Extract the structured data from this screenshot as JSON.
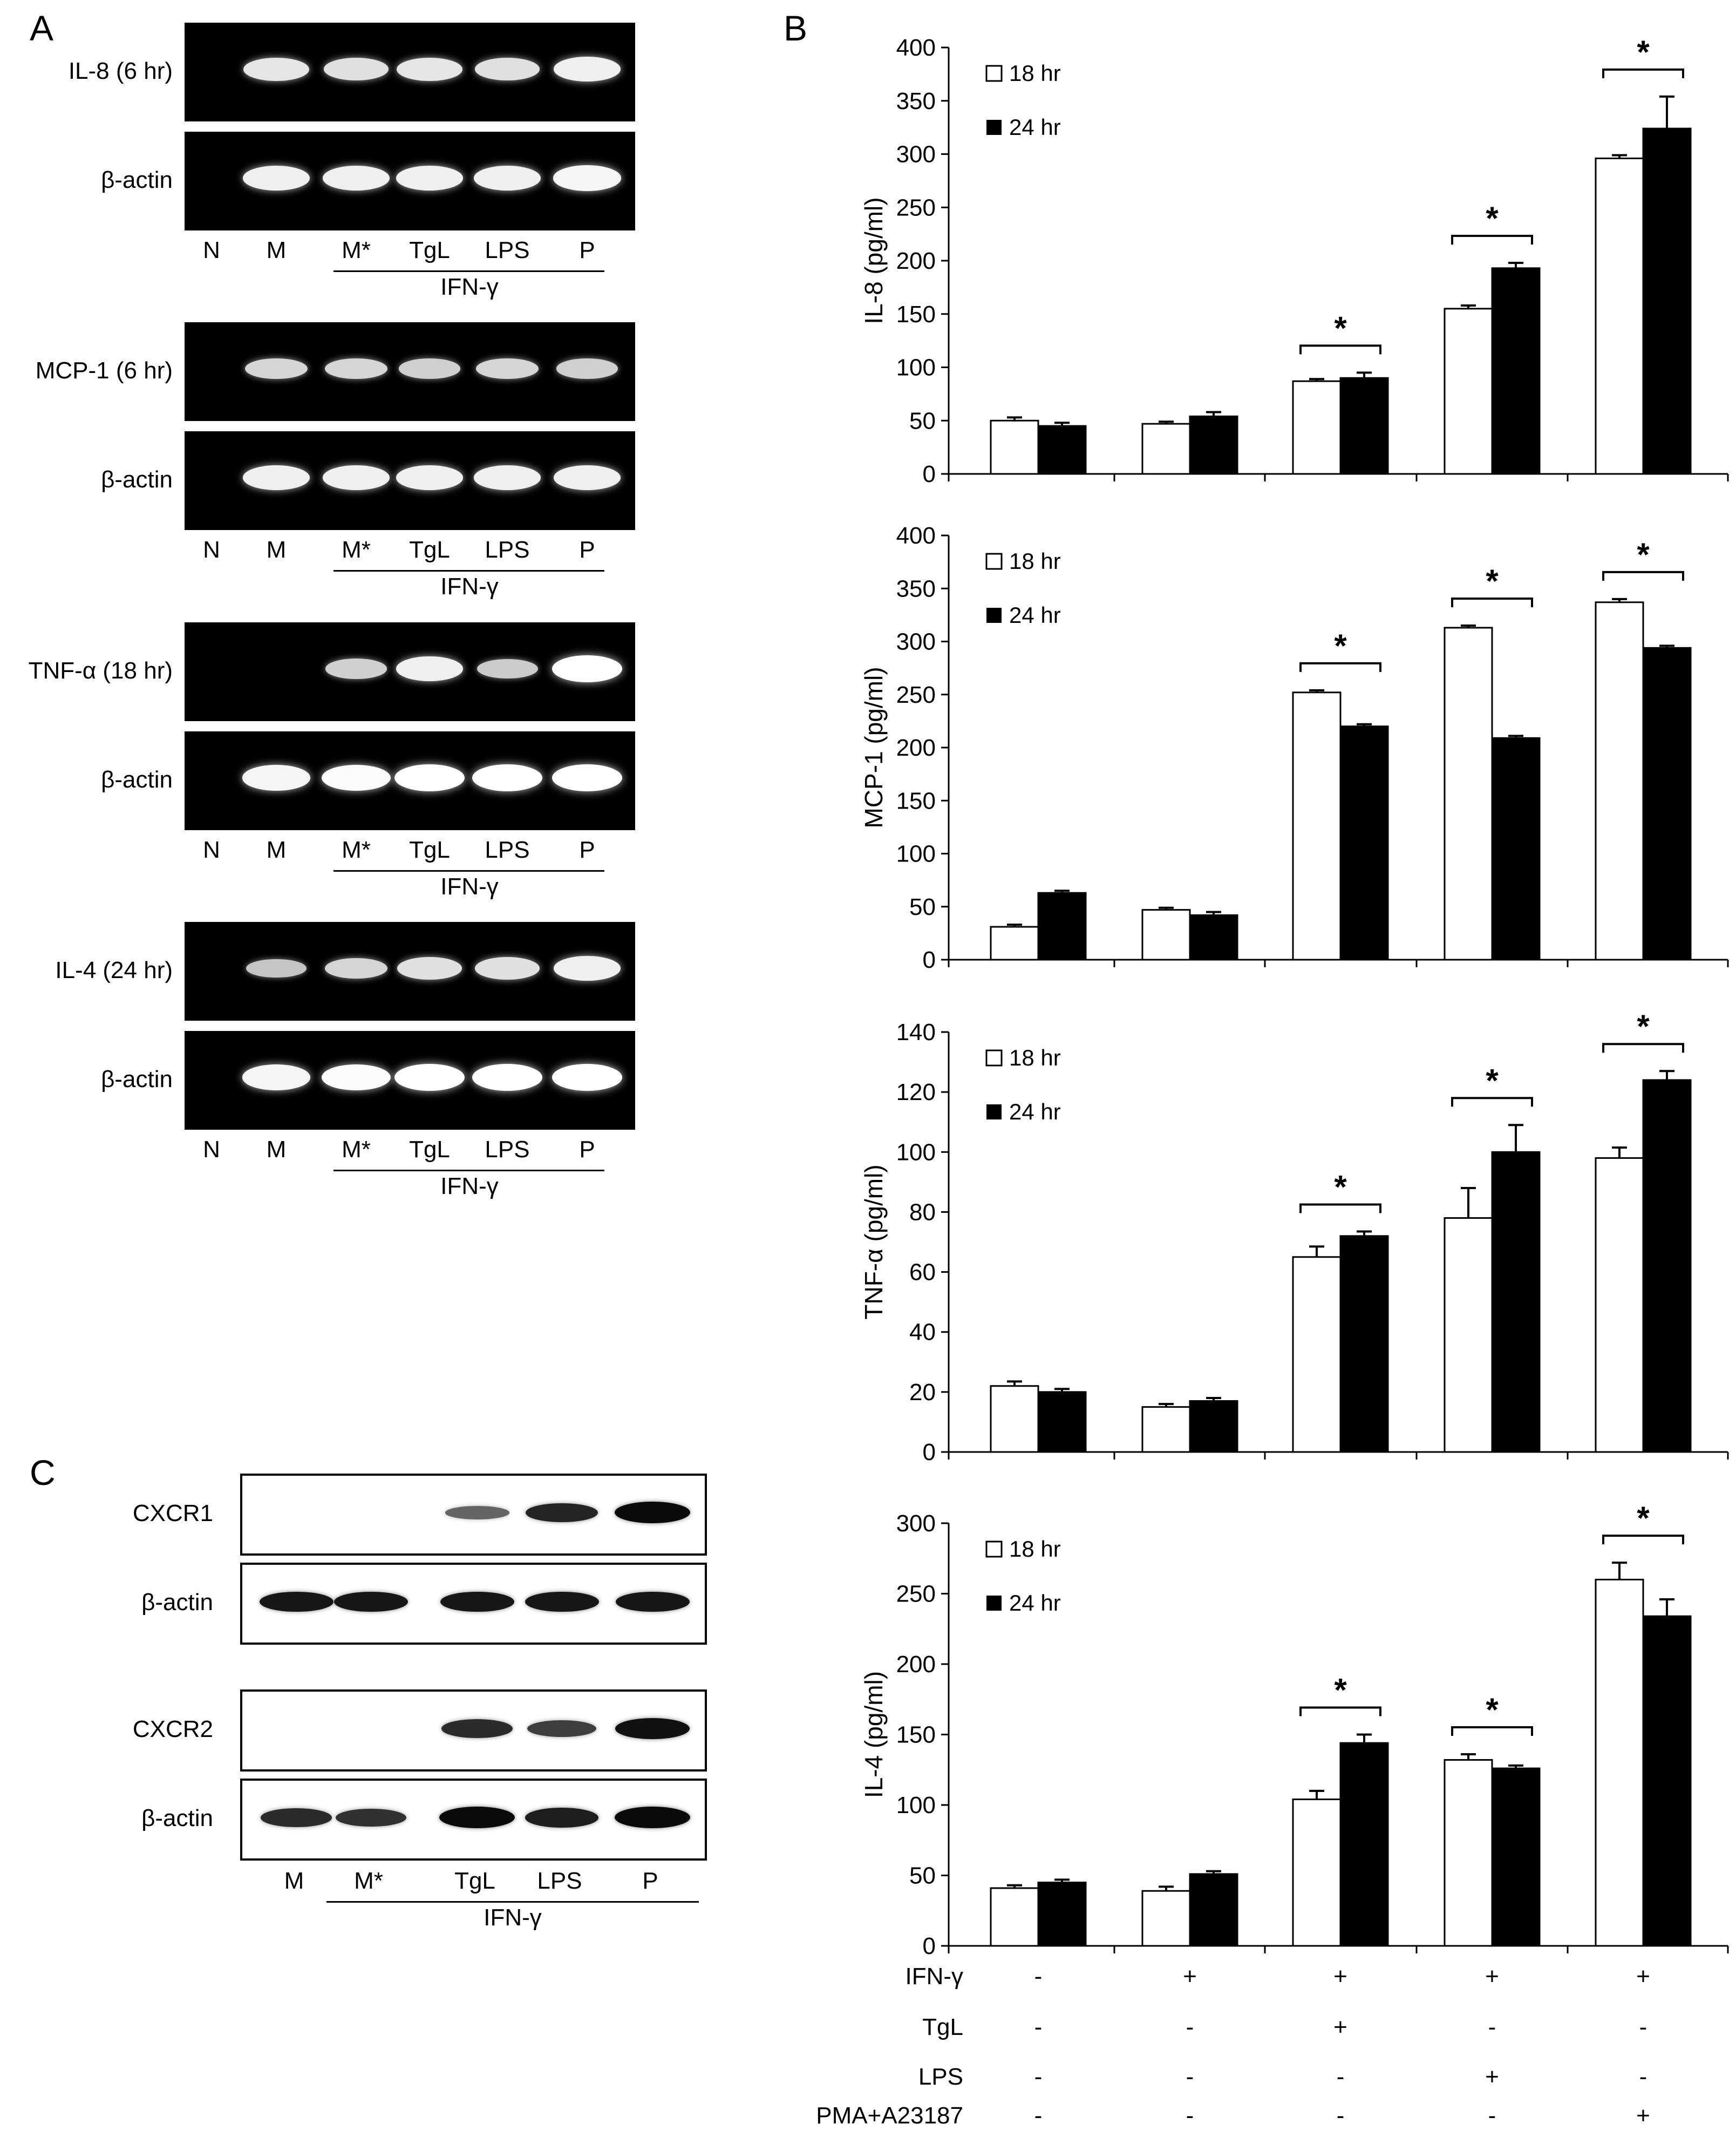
{
  "panels": {
    "a": "A",
    "b": "B",
    "c": "C"
  },
  "panel_a": {
    "lanes": [
      "N",
      "M",
      "M*",
      "TgL",
      "LPS",
      "P"
    ],
    "group_label": "IFN-γ",
    "gels": [
      {
        "target": "IL-8 (6 hr)",
        "control": "β-actin",
        "target_intensity": [
          0,
          0.75,
          0.7,
          0.75,
          0.7,
          0.85
        ],
        "control_intensity": [
          0,
          0.85,
          0.85,
          0.85,
          0.85,
          0.9
        ]
      },
      {
        "target": "MCP-1 (6 hr)",
        "control": "β-actin",
        "target_intensity": [
          0,
          0.6,
          0.6,
          0.55,
          0.6,
          0.55
        ],
        "control_intensity": [
          0,
          0.85,
          0.85,
          0.85,
          0.85,
          0.85
        ]
      },
      {
        "target": "TNF-α (18 hr)",
        "control": "β-actin",
        "target_intensity": [
          0,
          0,
          0.55,
          0.85,
          0.5,
          1.0
        ],
        "control_intensity": [
          0,
          0.9,
          0.95,
          1.0,
          1.0,
          1.0
        ]
      },
      {
        "target": "IL-4 (24 hr)",
        "control": "β-actin",
        "target_intensity": [
          0,
          0.45,
          0.6,
          0.7,
          0.7,
          0.85
        ],
        "control_intensity": [
          0,
          0.9,
          0.95,
          1.0,
          1.0,
          1.0
        ]
      }
    ]
  },
  "panel_c": {
    "lanes": [
      "M",
      "M*",
      "TgL",
      "LPS",
      "P"
    ],
    "group_label": "IFN-γ",
    "blots": [
      {
        "label": "CXCR1",
        "intensity": [
          0,
          0,
          0.3,
          0.8,
          1.0
        ]
      },
      {
        "label": "β-actin",
        "intensity": [
          0.9,
          0.9,
          0.9,
          0.9,
          0.9
        ]
      },
      {
        "label": "CXCR2",
        "intensity": [
          0,
          0,
          0.75,
          0.6,
          0.95
        ]
      },
      {
        "label": "β-actin",
        "intensity": [
          0.75,
          0.7,
          1.0,
          0.85,
          1.0
        ]
      }
    ]
  },
  "chart_data": [
    {
      "type": "bar",
      "ylabel": "IL-8 (pg/ml)",
      "ylim": [
        0,
        400
      ],
      "yticks": [
        0,
        50,
        100,
        150,
        200,
        250,
        300,
        350,
        400
      ],
      "legend": [
        "18 hr",
        "24 hr"
      ],
      "legend_position": "top-left",
      "series": [
        {
          "name": "18 hr",
          "values": [
            50,
            47,
            87,
            155,
            296
          ],
          "errors": [
            3,
            2,
            2,
            3,
            3
          ]
        },
        {
          "name": "24 hr",
          "values": [
            45,
            54,
            90,
            193,
            324
          ],
          "errors": [
            3,
            4,
            5,
            5,
            30
          ]
        }
      ],
      "significance": [
        false,
        false,
        true,
        true,
        true
      ],
      "sig_marker": "*"
    },
    {
      "type": "bar",
      "ylabel": "MCP-1 (pg/ml)",
      "ylim": [
        0,
        400
      ],
      "yticks": [
        0,
        50,
        100,
        150,
        200,
        250,
        300,
        350,
        400
      ],
      "legend": [
        "18 hr",
        "24 hr"
      ],
      "legend_position": "top-left",
      "series": [
        {
          "name": "18 hr",
          "values": [
            31,
            47,
            252,
            313,
            337
          ],
          "errors": [
            2,
            2,
            2,
            2,
            3
          ]
        },
        {
          "name": "24 hr",
          "values": [
            63,
            42,
            220,
            209,
            294
          ],
          "errors": [
            2,
            3,
            2,
            2,
            2
          ]
        }
      ],
      "significance": [
        false,
        false,
        true,
        true,
        true
      ],
      "sig_marker": "*"
    },
    {
      "type": "bar",
      "ylabel": "TNF-α (pg/ml)",
      "ylim": [
        0,
        140
      ],
      "yticks": [
        0,
        20,
        40,
        60,
        80,
        100,
        120,
        140
      ],
      "legend": [
        "18 hr",
        "24 hr"
      ],
      "legend_position": "top-left",
      "series": [
        {
          "name": "18 hr",
          "values": [
            22,
            15,
            65,
            78,
            98
          ],
          "errors": [
            1.5,
            1,
            3.5,
            10,
            3.5
          ]
        },
        {
          "name": "24 hr",
          "values": [
            20,
            17,
            72,
            100,
            124
          ],
          "errors": [
            1,
            1,
            1.5,
            9,
            3
          ]
        }
      ],
      "significance": [
        false,
        false,
        true,
        true,
        true
      ],
      "sig_marker": "*"
    },
    {
      "type": "bar",
      "ylabel": "IL-4 (pg/ml)",
      "ylim": [
        0,
        300
      ],
      "yticks": [
        0,
        50,
        100,
        150,
        200,
        250,
        300
      ],
      "legend": [
        "18 hr",
        "24 hr"
      ],
      "legend_position": "top-left",
      "series": [
        {
          "name": "18 hr",
          "values": [
            41,
            39,
            104,
            132,
            260
          ],
          "errors": [
            2,
            3,
            6,
            4,
            12
          ]
        },
        {
          "name": "24 hr",
          "values": [
            45,
            51,
            144,
            126,
            234
          ],
          "errors": [
            2,
            2,
            6,
            2,
            12
          ]
        }
      ],
      "significance": [
        false,
        false,
        true,
        true,
        true
      ],
      "sig_marker": "*"
    }
  ],
  "treatment_table": {
    "rows": [
      {
        "label": "IFN-γ",
        "values": [
          "-",
          "+",
          "+",
          "+",
          "+"
        ]
      },
      {
        "label": "TgL",
        "values": [
          "-",
          "-",
          "+",
          "-",
          "-"
        ]
      },
      {
        "label": "LPS",
        "values": [
          "-",
          "-",
          "-",
          "+",
          "-"
        ]
      },
      {
        "label": "PMA+A23187",
        "values": [
          "-",
          "-",
          "-",
          "-",
          "+"
        ]
      }
    ]
  }
}
